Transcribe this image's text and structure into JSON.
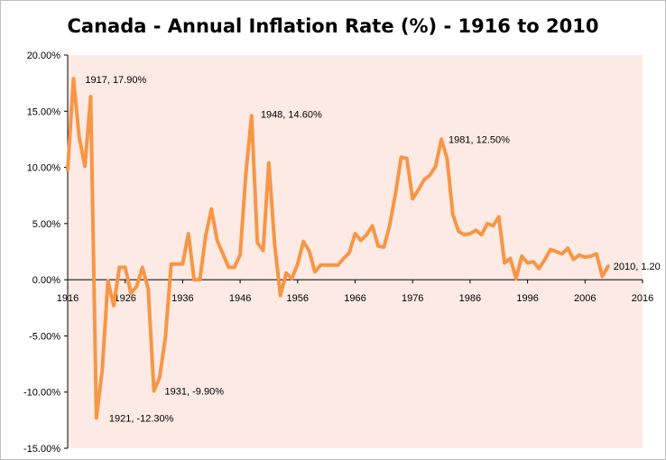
{
  "chart_data": {
    "type": "line",
    "title": "Canada - Annual Inflation Rate (%) - 1916 to 2010",
    "xlabel": "",
    "ylabel": "",
    "xlim": [
      1916,
      2016
    ],
    "ylim": [
      -15,
      20
    ],
    "x_ticks": [
      "1916",
      "1926",
      "1936",
      "1946",
      "1956",
      "1966",
      "1976",
      "1986",
      "1996",
      "2006",
      "2016"
    ],
    "y_ticks": [
      "20.00%",
      "15.00%",
      "10.00%",
      "5.00%",
      "0.00%",
      "-5.00%",
      "-10.00%",
      "-15.00%"
    ],
    "grid": false,
    "legend": "none",
    "colors": {
      "line": "#F79646",
      "plot_background": "#FDEAE4",
      "axis": "#000000"
    },
    "series": [
      {
        "x": [
          1916,
          1917,
          1918,
          1919,
          1920,
          1921,
          1922,
          1923,
          1924,
          1925,
          1926,
          1927,
          1928,
          1929,
          1930,
          1931,
          1932,
          1933,
          1934,
          1935,
          1936,
          1937,
          1938,
          1939,
          1940,
          1941,
          1942,
          1943,
          1944,
          1945,
          1946,
          1947,
          1948,
          1949,
          1950,
          1951,
          1952,
          1953,
          1954,
          1955,
          1956,
          1957,
          1958,
          1959,
          1960,
          1961,
          1962,
          1963,
          1964,
          1965,
          1966,
          1967,
          1968,
          1969,
          1970,
          1971,
          1972,
          1973,
          1974,
          1975,
          1976,
          1977,
          1978,
          1979,
          1980,
          1981,
          1982,
          1983,
          1984,
          1985,
          1986,
          1987,
          1988,
          1989,
          1990,
          1991,
          1992,
          1993,
          1994,
          1995,
          1996,
          1997,
          1998,
          1999,
          2000,
          2001,
          2002,
          2003,
          2004,
          2005,
          2006,
          2007,
          2008,
          2009,
          2010
        ],
        "values": [
          9.8,
          17.9,
          12.7,
          10.1,
          16.3,
          -12.3,
          -8.1,
          -0.1,
          -2.3,
          1.1,
          1.1,
          -1.2,
          -0.6,
          1.1,
          -0.8,
          -9.9,
          -8.7,
          -5.1,
          1.4,
          1.4,
          1.4,
          4.1,
          0.0,
          0.0,
          3.9,
          6.3,
          3.5,
          2.3,
          1.1,
          1.1,
          2.2,
          9.5,
          14.6,
          3.3,
          2.6,
          10.4,
          3.2,
          -1.4,
          0.6,
          0.1,
          1.4,
          3.4,
          2.6,
          0.7,
          1.3,
          1.3,
          1.3,
          1.3,
          1.9,
          2.4,
          4.1,
          3.5,
          4.0,
          4.8,
          3.0,
          2.9,
          4.8,
          7.6,
          10.9,
          10.8,
          7.2,
          8.0,
          8.9,
          9.3,
          10.1,
          12.5,
          10.8,
          5.8,
          4.3,
          4.0,
          4.1,
          4.4,
          4.0,
          5.0,
          4.8,
          5.6,
          1.5,
          1.9,
          0.1,
          2.1,
          1.5,
          1.6,
          1.0,
          1.8,
          2.7,
          2.5,
          2.3,
          2.8,
          1.8,
          2.2,
          2.0,
          2.1,
          2.3,
          0.3,
          1.2
        ]
      }
    ],
    "annotations": [
      {
        "x": 1917,
        "y": 17.9,
        "text": "1917, 17.90%"
      },
      {
        "x": 1921,
        "y": -12.3,
        "text": "1921, -12.30%"
      },
      {
        "x": 1931,
        "y": -9.9,
        "text": "1931, -9.90%"
      },
      {
        "x": 1948,
        "y": 14.6,
        "text": "1948, 14.60%"
      },
      {
        "x": 1981,
        "y": 12.5,
        "text": "1981, 12.50%"
      },
      {
        "x": 2010,
        "y": 1.2,
        "text": "2010, 1.20"
      }
    ]
  }
}
